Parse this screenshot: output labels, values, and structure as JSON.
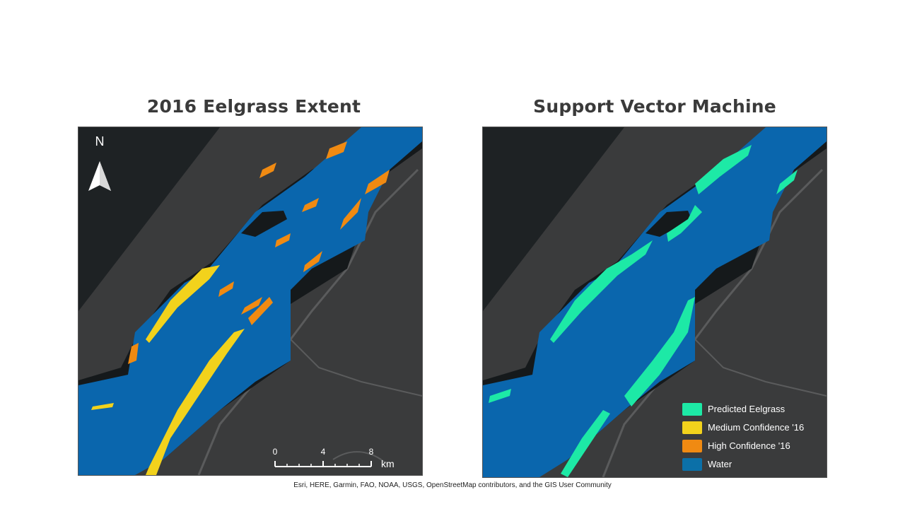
{
  "panels": {
    "left": {
      "title": "2016 Eelgrass Extent"
    },
    "right": {
      "title": "Support Vector Machine"
    }
  },
  "north_arrow": {
    "label": "N",
    "icon": "north-arrow-icon"
  },
  "scale_bar": {
    "ticks": [
      "0",
      "4",
      "8"
    ],
    "unit": "km"
  },
  "legend": {
    "items": [
      {
        "label": "Predicted Eelgrass",
        "color": "#1de9a6"
      },
      {
        "label": "Medium Confidence '16",
        "color": "#f2d21c"
      },
      {
        "label": "High Confidence '16",
        "color": "#f08a12"
      },
      {
        "label": "Water",
        "color": "#0b70a8"
      }
    ]
  },
  "colors": {
    "water": "#0a66ad",
    "land": "#3a3b3c",
    "dark_land": "#1e2224",
    "roads": "#5a5b5c",
    "high_confidence": "#f08a12",
    "medium_confidence": "#f2d21c",
    "predicted": "#1de9a6"
  },
  "attribution": "Esri, HERE, Garmin, FAO, NOAA, USGS, OpenStreetMap contributors, and the GIS User Community"
}
